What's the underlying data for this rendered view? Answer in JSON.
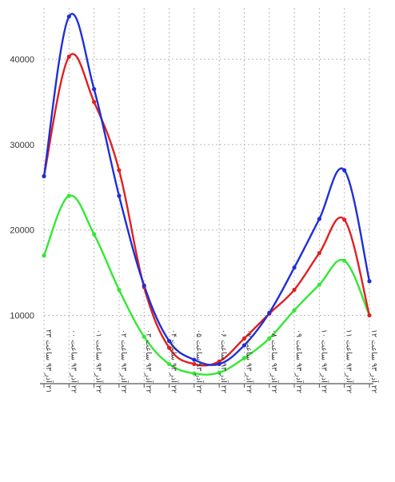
{
  "chart_data": {
    "type": "line",
    "title": "",
    "xlabel": "",
    "ylabel": "",
    "categories": [
      "۲۱ آذر ۹۳ ساعت ۲۳",
      "۲۲ آذر ۹۳ ساعت ۰۰",
      "۲۲ آذر ۹۳ ساعت ۰۱",
      "۲۲ آذر ۹۳ ساعت ۰۲",
      "۲۲ آذر ۹۳ ساعت ۰۳",
      "۲۲ آذر ۹۳ ساعت ۰۴",
      "۲۲ آذر ۹۳ ساعت ۰۵",
      "۲۲ آذر ۹۳ ساعت ۰۶",
      "۲۲ آذر ۹۳ ساعت ۰۷",
      "۲۲ آذر ۹۳ ساعت ۰۸",
      "۲۲ آذر ۹۳ ساعت ۰۹",
      "۲۲ آذر ۹۳ ساعت ۱۰",
      "۲۲ آذر ۹۳ ساعت ۱۱",
      "۲۲ آذر ۹۳ ساعت ۱۲"
    ],
    "ylim": [
      2000,
      46000
    ],
    "yticks": [
      10000,
      20000,
      30000,
      40000
    ],
    "ytick_labels": [
      "10000",
      "20000",
      "30000",
      "40000"
    ],
    "grid": true,
    "legend": "none",
    "series": [
      {
        "color": "#1f2fd6",
        "values": [
          26300,
          45000,
          36500,
          24000,
          13500,
          7000,
          4800,
          4300,
          6500,
          10300,
          15600,
          21300,
          27000,
          14000
        ]
      },
      {
        "color": "#e02020",
        "values": [
          26300,
          40300,
          35000,
          27000,
          13300,
          6200,
          4300,
          4600,
          7300,
          10200,
          13000,
          17300,
          21200,
          10000
        ]
      },
      {
        "color": "#33e833",
        "values": [
          17000,
          24000,
          19500,
          13000,
          7500,
          4300,
          3200,
          3300,
          5000,
          7300,
          10600,
          13600,
          16400,
          10000
        ]
      }
    ]
  }
}
